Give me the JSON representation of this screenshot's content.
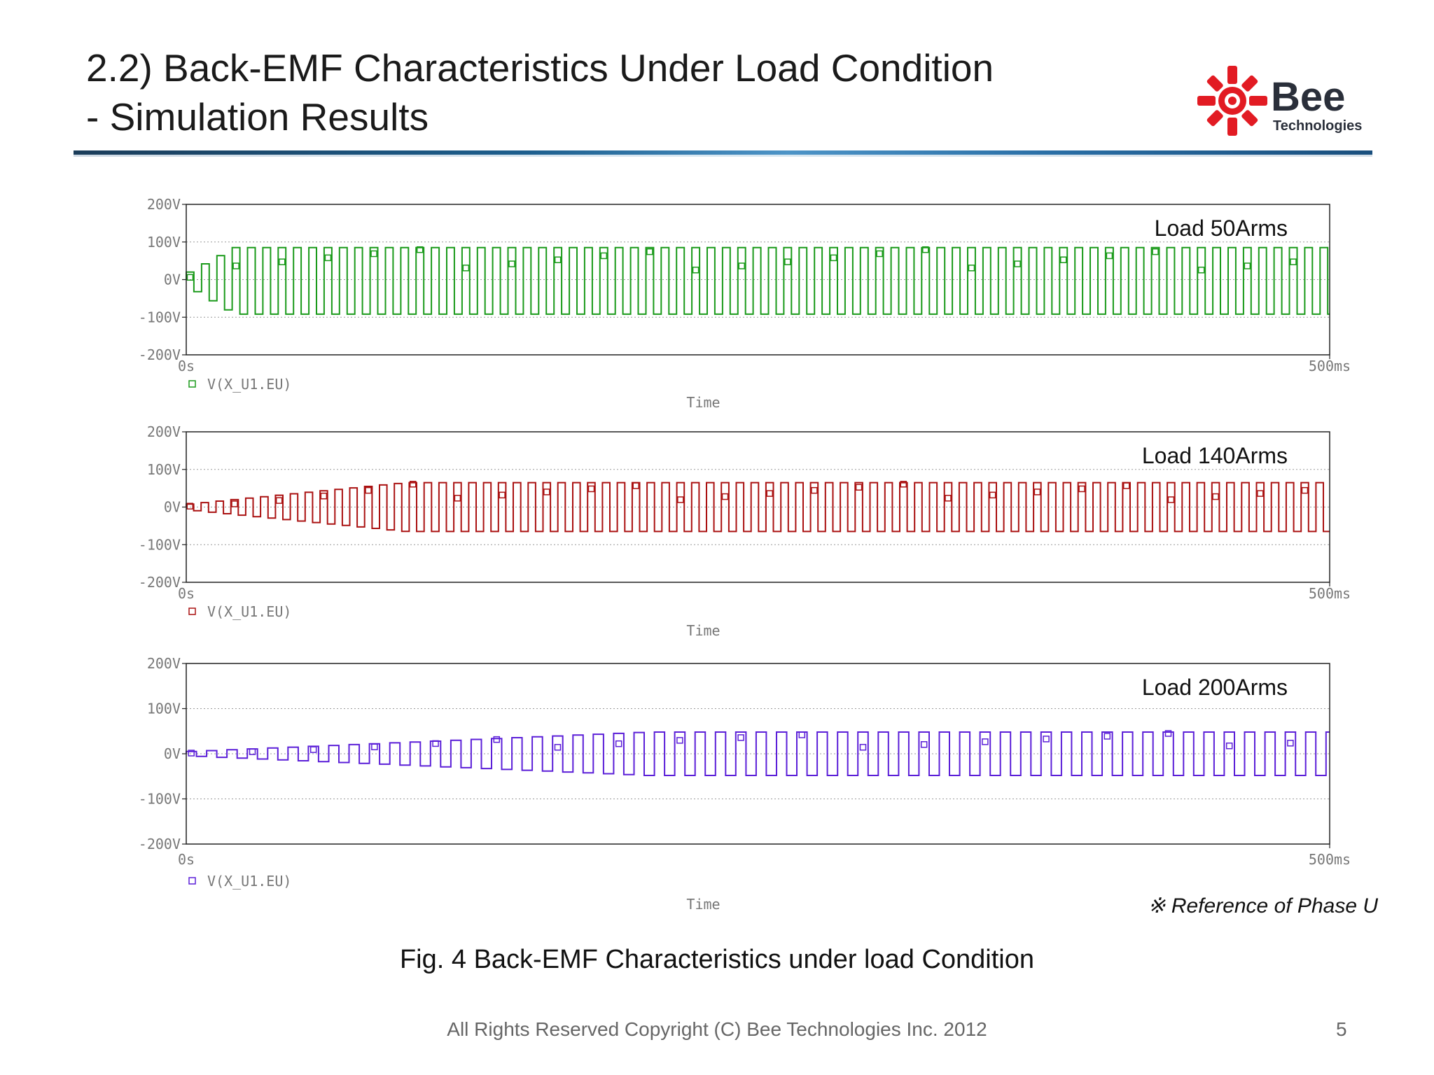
{
  "slide": {
    "title_line1": "2.2) Back-EMF Characteristics Under Load Condition",
    "title_line2": "- Simulation Results",
    "logo_name": "Bee",
    "logo_sub": "Technologies",
    "figure_caption": "Fig. 4 Back-EMF Characteristics under load Condition",
    "reference_note": "※ Reference of Phase U",
    "copyright": "All Rights Reserved Copyright (C) Bee Technologies Inc. 2012",
    "page_number": "5"
  },
  "chart_data": [
    {
      "type": "line",
      "annotation": "Load 50Arms",
      "xlabel": "Time",
      "x_range_ms": [
        0,
        500
      ],
      "x_ticks": [
        "0s",
        "500ms"
      ],
      "ylim": [
        -200,
        200
      ],
      "y_ticks": [
        "200V",
        "100V",
        "0V",
        "-100V",
        "-200V"
      ],
      "grid": true,
      "color": "#1a9a1a",
      "series": [
        {
          "name": "V(X_U1.EU)",
          "waveform": "square",
          "period_ms": 6.7,
          "high_V": 85,
          "low_V": -92,
          "startup_ms": 20,
          "initial_amplitude_V": 20
        }
      ]
    },
    {
      "type": "line",
      "annotation": "Load 140Arms",
      "xlabel": "Time",
      "x_range_ms": [
        0,
        500
      ],
      "x_ticks": [
        "0s",
        "500ms"
      ],
      "ylim": [
        -200,
        200
      ],
      "y_ticks": [
        "200V",
        "100V",
        "0V",
        "-100V",
        "-200V"
      ],
      "grid": true,
      "color": "#aa1111",
      "series": [
        {
          "name": "V(X_U1.EU)",
          "waveform": "square",
          "period_ms": 6.5,
          "high_V": 65,
          "low_V": -65,
          "startup_ms": 95,
          "initial_amplitude_V": 8
        }
      ]
    },
    {
      "type": "line",
      "annotation": "Load 200Arms",
      "xlabel": "Time",
      "x_range_ms": [
        0,
        500
      ],
      "x_ticks": [
        "0s",
        "500ms"
      ],
      "ylim": [
        -200,
        200
      ],
      "y_ticks": [
        "200V",
        "100V",
        "0V",
        "-100V",
        "-200V"
      ],
      "grid": true,
      "color": "#5b1fd8",
      "series": [
        {
          "name": "V(X_U1.EU)",
          "waveform": "square",
          "period_ms": 8.9,
          "high_V": 48,
          "low_V": -48,
          "startup_ms": 200,
          "initial_amplitude_V": 5
        }
      ]
    }
  ]
}
